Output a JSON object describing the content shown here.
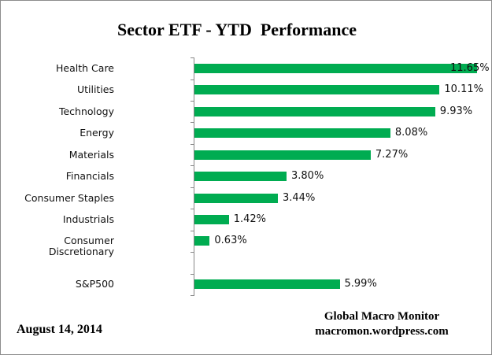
{
  "title": "Sector ETF - YTD  Performance",
  "footer": {
    "date": "August 14, 2014",
    "source_line1": "Global Macro Monitor",
    "source_line2": "macromon.wordpress.com"
  },
  "chart_data": {
    "type": "bar",
    "orientation": "horizontal",
    "title": "Sector ETF - YTD  Performance",
    "categories": [
      "Health Care",
      "Utilities",
      "Technology",
      "Energy",
      "Materials",
      "Financials",
      "Consumer Staples",
      "Industrials",
      "Consumer Discretionary",
      "",
      "S&P500"
    ],
    "values": [
      11.65,
      10.11,
      9.93,
      8.08,
      7.27,
      3.8,
      3.44,
      1.42,
      0.63,
      null,
      5.99
    ],
    "value_labels": [
      "11.65%",
      "10.11%",
      "9.93%",
      "8.08%",
      "7.27%",
      "3.80%",
      "3.44%",
      "1.42%",
      "0.63%",
      "",
      "5.99%"
    ],
    "xlabel": "",
    "ylabel": "",
    "xlim": [
      0,
      12
    ],
    "grid": false,
    "legend": false,
    "bar_color": "#00AC51",
    "axis_color": "#878787",
    "label_color": "#111111"
  }
}
